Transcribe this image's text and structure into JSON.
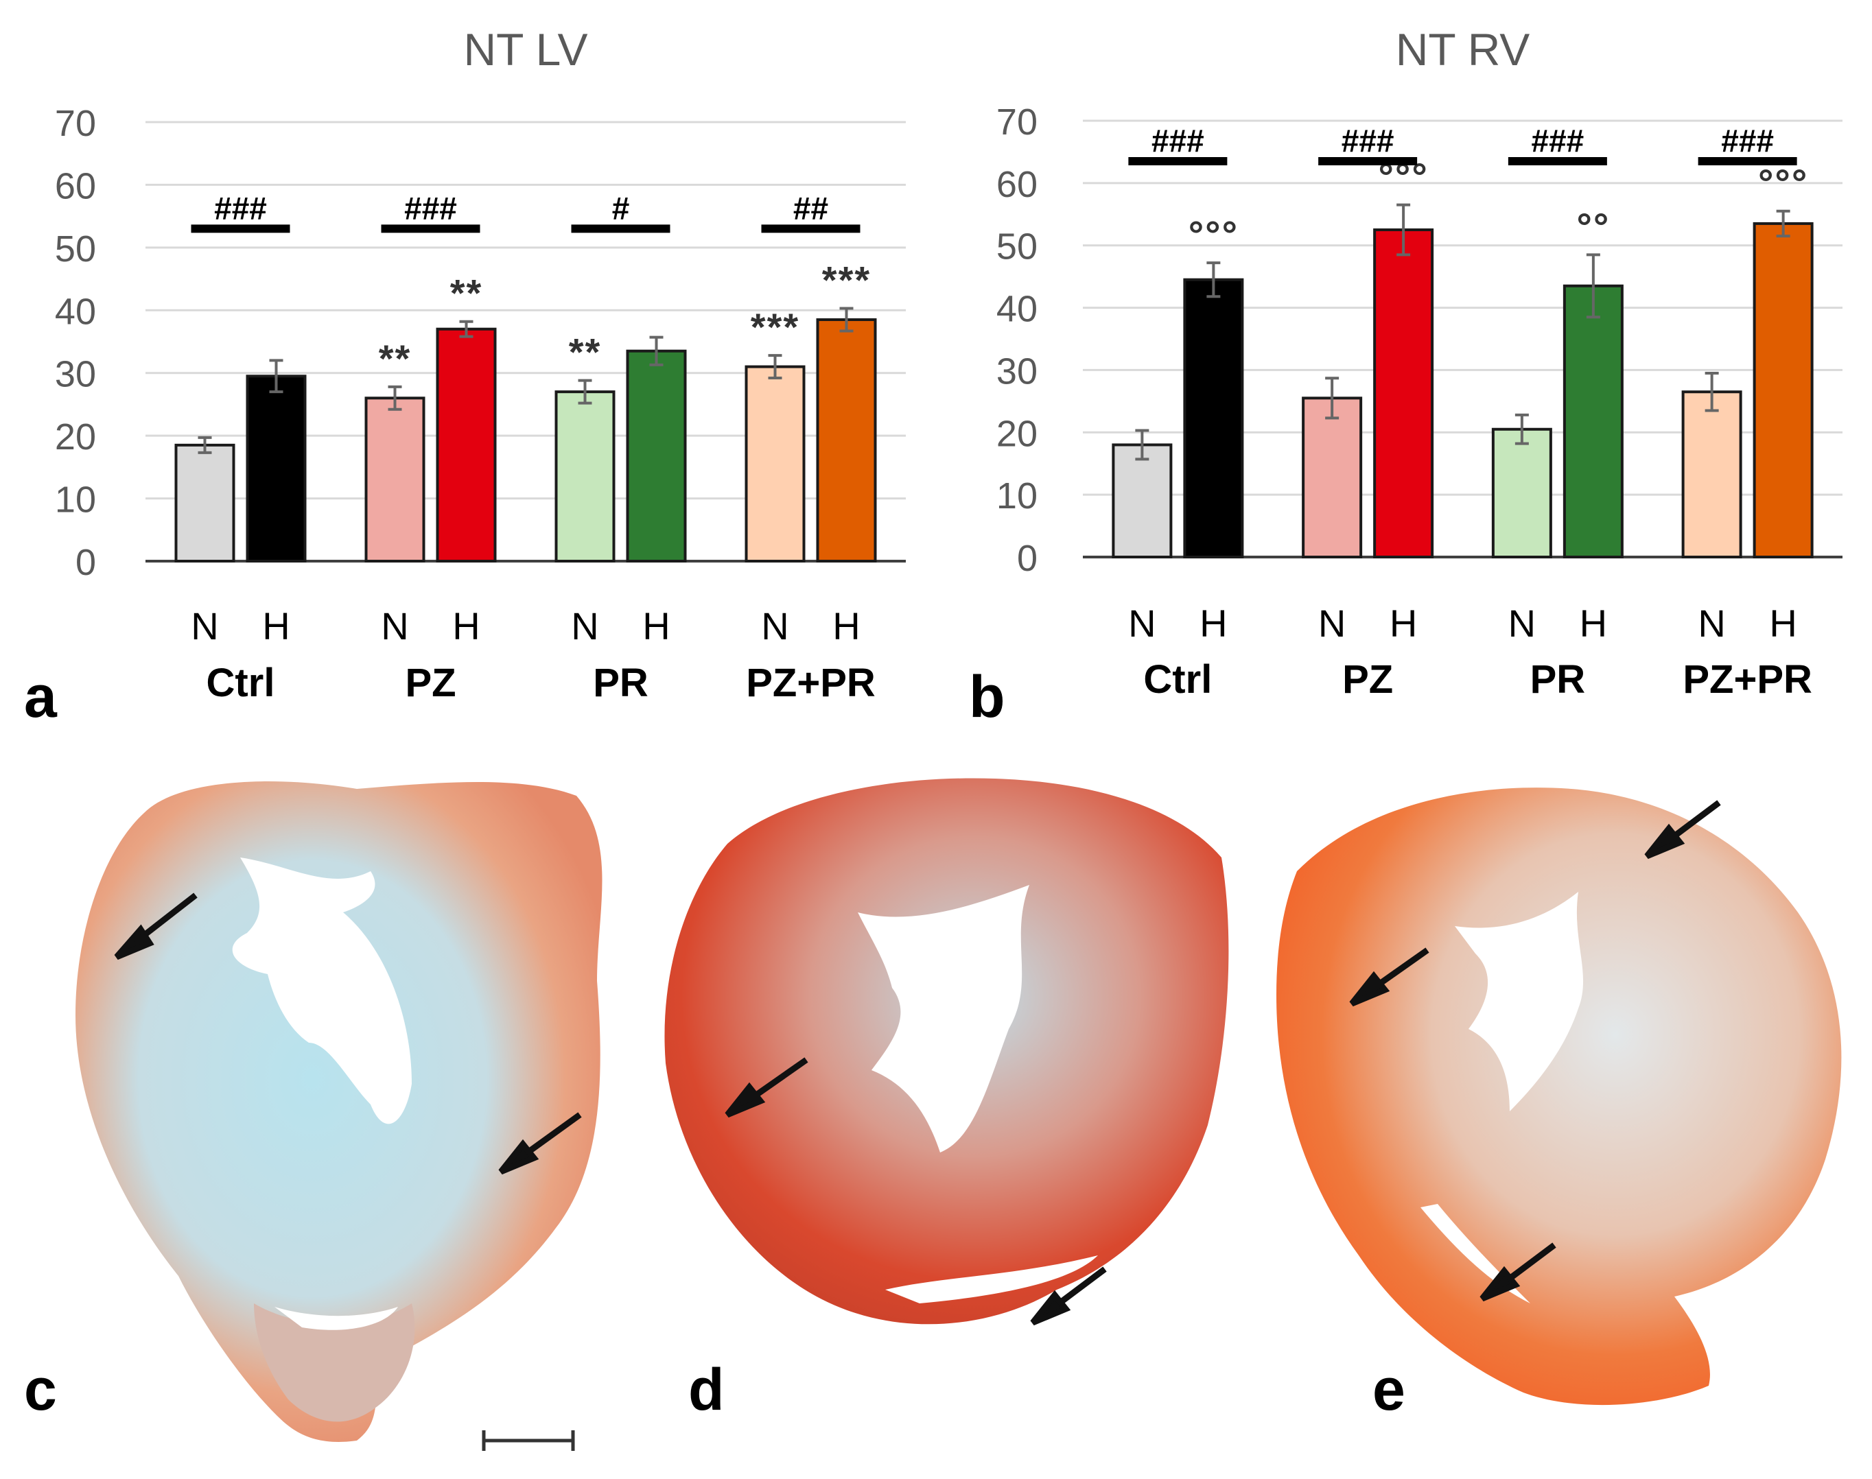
{
  "chart_data": [
    {
      "type": "bar",
      "panel_label": "a",
      "title": "NT LV",
      "ylim": [
        0,
        70
      ],
      "yticks": [
        "0",
        "10",
        "20",
        "30",
        "40",
        "50",
        "60",
        "70"
      ],
      "grid": true,
      "groups": [
        "Ctrl",
        "PZ",
        "PR",
        "PZ+PR"
      ],
      "bar_labels": [
        "N",
        "H"
      ],
      "series": [
        {
          "name": "N",
          "values": [
            18.5,
            26,
            27,
            31
          ],
          "errors": [
            1.2,
            1.8,
            1.8,
            1.8
          ],
          "colors": [
            "#d9d9d9",
            "#f0a9a3",
            "#c6e7bc",
            "#ffd0b0"
          ]
        },
        {
          "name": "H",
          "values": [
            29.5,
            37,
            33.5,
            38.5
          ],
          "errors": [
            2.5,
            1.2,
            2.2,
            1.8
          ],
          "colors": [
            "#000000",
            "#e3000f",
            "#2e7d32",
            "#e05d00"
          ]
        }
      ],
      "annotations_n": [
        "",
        "**",
        "**",
        "***"
      ],
      "annotations_h": [
        "",
        "**",
        "",
        "***"
      ],
      "significance": [
        "###",
        "###",
        "#",
        "##"
      ],
      "significance_y": 53
    },
    {
      "type": "bar",
      "panel_label": "b",
      "title": "NT RV",
      "ylim": [
        0,
        70
      ],
      "yticks": [
        "0",
        "10",
        "20",
        "30",
        "40",
        "50",
        "60",
        "70"
      ],
      "grid": true,
      "groups": [
        "Ctrl",
        "PZ",
        "PR",
        "PZ+PR"
      ],
      "bar_labels": [
        "N",
        "H"
      ],
      "series": [
        {
          "name": "N",
          "values": [
            18,
            25.5,
            20.5,
            26.5
          ],
          "errors": [
            2.3,
            3.2,
            2.3,
            3.0
          ],
          "colors": [
            "#d9d9d9",
            "#f0a9a3",
            "#c6e7bc",
            "#ffd0b0"
          ]
        },
        {
          "name": "H",
          "values": [
            44.5,
            52.5,
            43.5,
            53.5
          ],
          "errors": [
            2.7,
            4.0,
            5.0,
            2.0
          ],
          "colors": [
            "#000000",
            "#e3000f",
            "#2e7d32",
            "#e05d00"
          ]
        }
      ],
      "annotations_n": [
        "",
        "",
        "",
        ""
      ],
      "annotations_h": [
        "°°°",
        "°°°",
        "°°",
        "°°°"
      ],
      "significance": [
        "###",
        "###",
        "###",
        "###"
      ],
      "significance_y": 63.5
    }
  ],
  "images": [
    {
      "panel_label": "c",
      "description_name": "heart-section-c",
      "scale_bar": true
    },
    {
      "panel_label": "d",
      "description_name": "heart-section-d",
      "scale_bar": false
    },
    {
      "panel_label": "e",
      "description_name": "heart-section-e",
      "scale_bar": false
    }
  ]
}
